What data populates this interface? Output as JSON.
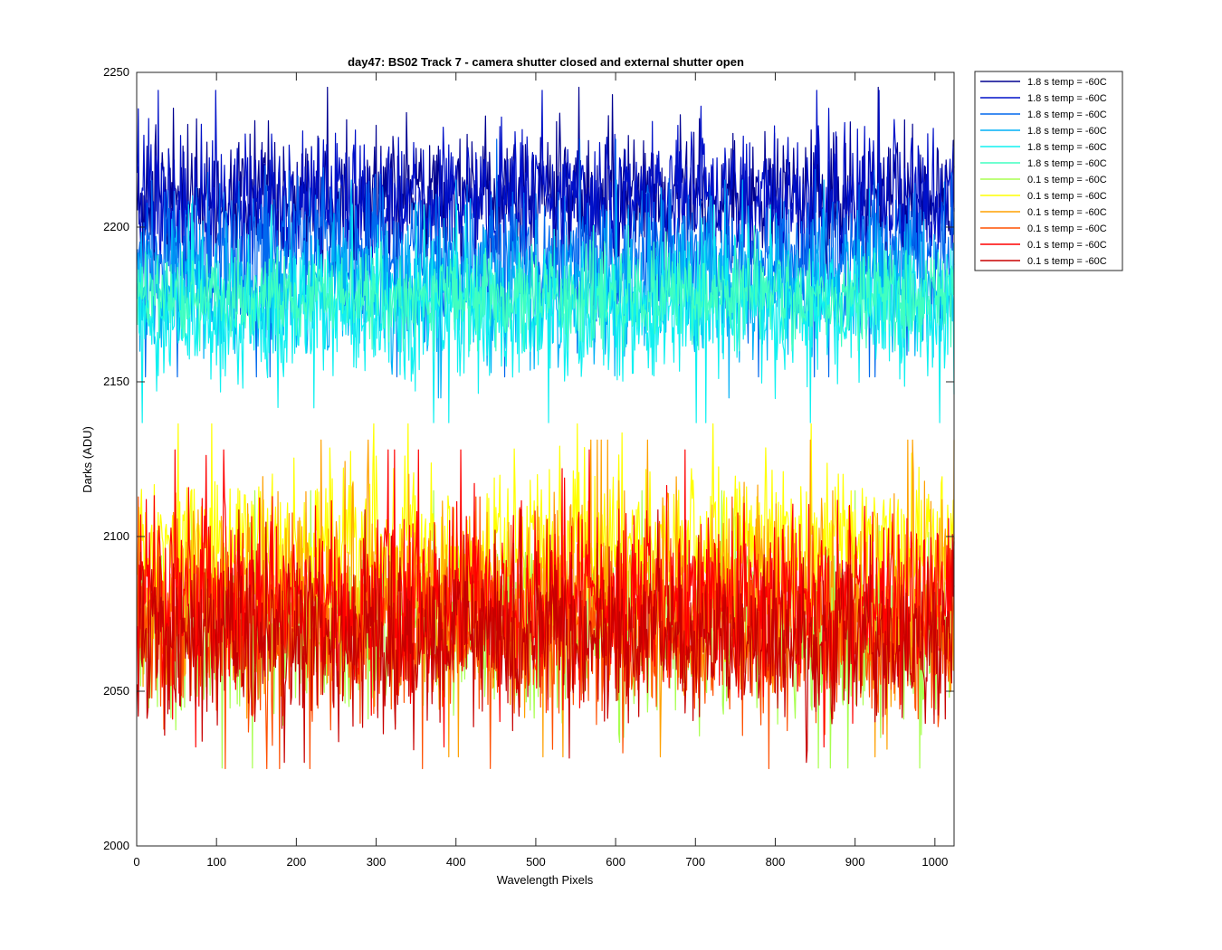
{
  "chart_data": {
    "type": "line",
    "title": "day47: BS02  Track 7 - camera shutter closed and external shutter open",
    "xlabel": "Wavelength Pixels",
    "ylabel": "Darks (ADU)",
    "xlim": [
      0,
      1024
    ],
    "ylim": [
      2000,
      2250
    ],
    "xticks": [
      0,
      100,
      200,
      300,
      400,
      500,
      600,
      700,
      800,
      900,
      1000
    ],
    "yticks": [
      2000,
      2050,
      2100,
      2150,
      2200,
      2250
    ],
    "grid": false,
    "legend_position": "outside-top-right",
    "n_points": 1024,
    "series": [
      {
        "name": "1.8 s temp = -60C",
        "color": "#00008f",
        "mean": 2210,
        "spread": 11,
        "min": 2185,
        "max": 2250
      },
      {
        "name": "1.8 s temp = -60C",
        "color": "#0010c8",
        "mean": 2209,
        "spread": 11,
        "min": 2188,
        "max": 2246
      },
      {
        "name": "1.8 s temp = -60C",
        "color": "#0068ee",
        "mean": 2190,
        "spread": 12,
        "min": 2145,
        "max": 2232
      },
      {
        "name": "1.8 s temp = -60C",
        "color": "#00b0f7",
        "mean": 2180,
        "spread": 11,
        "min": 2138,
        "max": 2222
      },
      {
        "name": "1.8 s temp = -60C",
        "color": "#10f0f0",
        "mean": 2172,
        "spread": 11,
        "min": 2130,
        "max": 2210
      },
      {
        "name": "1.8 s temp = -60C",
        "color": "#40ffc0",
        "mean": 2178,
        "spread": 7,
        "min": 2160,
        "max": 2205
      },
      {
        "name": "0.1 s temp = -60C",
        "color": "#a8ff50",
        "mean": 2070,
        "spread": 14,
        "min": 2025,
        "max": 2118
      },
      {
        "name": "0.1 s temp = -60C",
        "color": "#ffff00",
        "mean": 2098,
        "spread": 12,
        "min": 2050,
        "max": 2145
      },
      {
        "name": "0.1 s temp = -60C",
        "color": "#ffa000",
        "mean": 2080,
        "spread": 16,
        "min": 2025,
        "max": 2136
      },
      {
        "name": "0.1 s temp = -60C",
        "color": "#ff5000",
        "mean": 2068,
        "spread": 14,
        "min": 2025,
        "max": 2120
      },
      {
        "name": "0.1 s temp = -60C",
        "color": "#ff0000",
        "mean": 2080,
        "spread": 15,
        "min": 2032,
        "max": 2135
      },
      {
        "name": "0.1 s temp = -60C",
        "color": "#c80000",
        "mean": 2067,
        "spread": 13,
        "min": 2027,
        "max": 2130
      }
    ]
  }
}
